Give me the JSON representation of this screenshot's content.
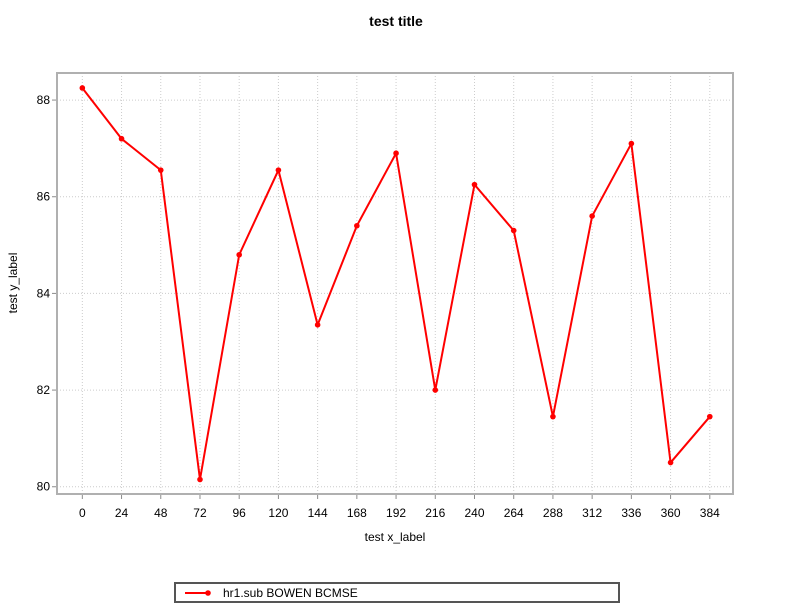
{
  "title": "test title",
  "legend": {
    "label": "hr1.sub BOWEN BCMSE",
    "position": "bottom-center"
  },
  "colors": {
    "series": "#ff0000",
    "grid": "#cccccc",
    "border": "#b0b0b0",
    "tick": "#8c8c8c",
    "text": "#000000",
    "legend_border": "#555555",
    "background": "#ffffff"
  },
  "chart_data": {
    "type": "line",
    "title": "test title",
    "xlabel": "test x_label",
    "ylabel": "test y_label",
    "grid": "dotted",
    "legend_position": "bottom-center",
    "x_ticks": [
      0,
      24,
      48,
      72,
      96,
      120,
      144,
      168,
      192,
      216,
      240,
      264,
      288,
      312,
      336,
      360,
      384
    ],
    "y_ticks": [
      80,
      82,
      84,
      86,
      88
    ],
    "xlim": [
      -15.5,
      398.2
    ],
    "ylim": [
      79.85,
      88.56
    ],
    "series": [
      {
        "name": "hr1.sub BOWEN BCMSE",
        "color": "#ff0000",
        "marker": "circle",
        "x": [
          0,
          24,
          48,
          72,
          96,
          120,
          144,
          168,
          192,
          216,
          240,
          264,
          288,
          312,
          336,
          360,
          384
        ],
        "y": [
          88.25,
          87.2,
          86.55,
          80.15,
          84.8,
          86.55,
          83.35,
          85.4,
          86.9,
          82.0,
          86.25,
          85.3,
          81.45,
          85.6,
          87.1,
          80.5,
          81.45
        ]
      }
    ]
  }
}
